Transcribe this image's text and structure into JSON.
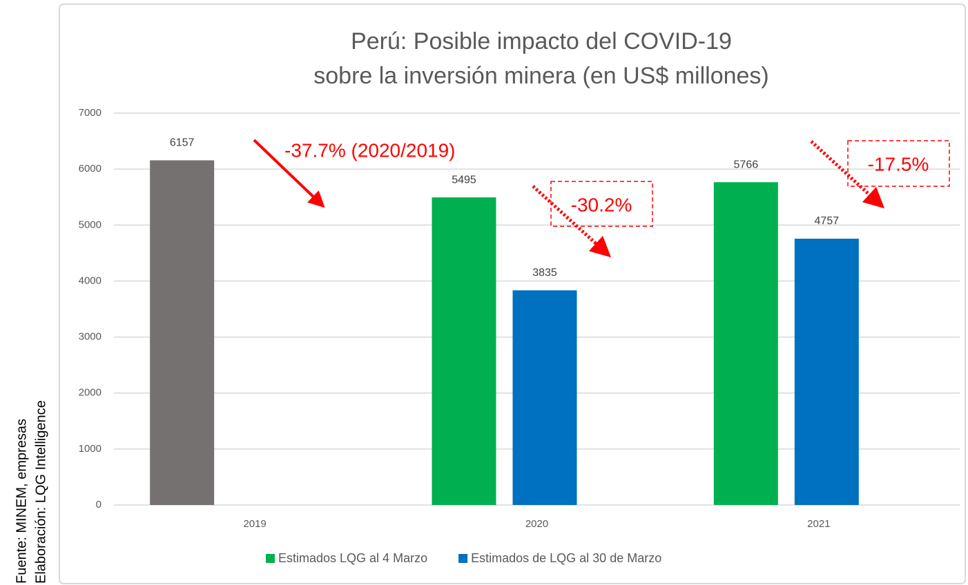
{
  "chart_data": {
    "type": "bar",
    "title": [
      "Perú: Posible impacto del COVID-19",
      "sobre la inversión minera (en US$ millones)"
    ],
    "categories": [
      "2019",
      "2020",
      "2021"
    ],
    "series": [
      {
        "color": "#767171",
        "values": [
          6157,
          null,
          null
        ]
      },
      {
        "name": "Estimados LQG al 4 Marzo",
        "color": "#00b050",
        "values": [
          null,
          5495,
          5766
        ]
      },
      {
        "name": "Estimados de LQG al 30 de Marzo",
        "color": "#0070c0",
        "values": [
          null,
          3835,
          4757
        ]
      }
    ],
    "ylim": [
      0,
      7000
    ],
    "yticks": [
      0,
      1000,
      2000,
      3000,
      4000,
      5000,
      6000,
      7000
    ],
    "grid": true,
    "legend": "bottom",
    "annotations": [
      "-37.7% (2020/2019)",
      "-30.2%",
      "-17.5%"
    ],
    "annotation_color": "#ff0000",
    "source": [
      "Fuente: MINEM, empresas",
      "Elaboración: LQG Intelligence"
    ]
  }
}
